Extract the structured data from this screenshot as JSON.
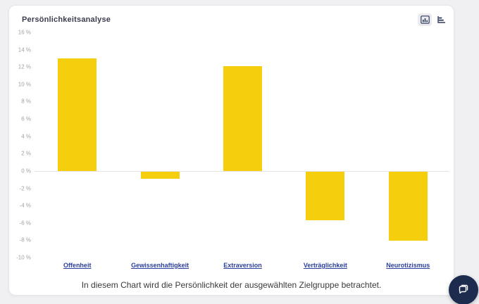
{
  "header": {
    "title": "Persönlichkeitsanalyse"
  },
  "toolbar": {
    "column_chart_toggle": "column-chart",
    "bar_chart_toggle": "bar-chart"
  },
  "chart_data": {
    "type": "bar",
    "title": "Persönlichkeitsanalyse",
    "categories": [
      "Offenheit",
      "Gewissenhaftigkeit",
      "Extraversion",
      "Verträglichkeit",
      "Neurotizismus"
    ],
    "values": [
      13,
      -0.8,
      12.1,
      -5.6,
      -8
    ],
    "xlabel": "",
    "ylabel": "",
    "ylim": [
      -10,
      16
    ],
    "yticks": [
      {
        "label": "16 %",
        "value": 16
      },
      {
        "label": "14 %",
        "value": 14
      },
      {
        "label": "12 %",
        "value": 12
      },
      {
        "label": "10 %",
        "value": 10
      },
      {
        "label": "8 %",
        "value": 8
      },
      {
        "label": "6 %",
        "value": 6
      },
      {
        "label": "4 %",
        "value": 4
      },
      {
        "label": "2 %",
        "value": 2
      },
      {
        "label": "0 %",
        "value": 0
      },
      {
        "label": "-2 %",
        "value": -2
      },
      {
        "label": "-4 %",
        "value": -4
      },
      {
        "label": "-6 %",
        "value": -6
      },
      {
        "label": "-8 %",
        "value": -8
      },
      {
        "label": "-10 %",
        "value": -10
      }
    ],
    "bar_color": "#f5cf0e",
    "category_link_color": "#2b3f9e",
    "grid": false,
    "zero_line": true,
    "legend": "none"
  },
  "caption": {
    "text": "In diesem Chart wird die Persönlichkeit der ausgewählten Zielgruppe betrachtet."
  }
}
